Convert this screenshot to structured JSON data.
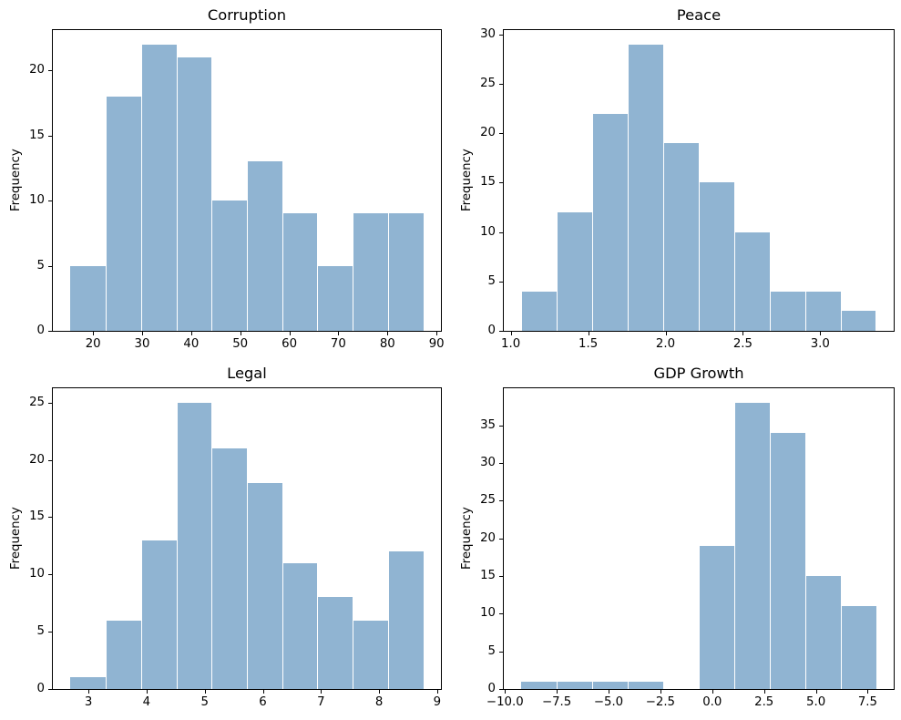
{
  "figure": {
    "background": "#ffffff",
    "bar_color": "#90b4d2",
    "bar_seam_color": "#ffffff",
    "spine_color": "#000000",
    "text_color": "#000000"
  },
  "chart_data": [
    {
      "type": "histogram",
      "title": "Corruption",
      "xlabel": "",
      "ylabel": "Frequency",
      "bin_edges": [
        15.4,
        22.59,
        29.78,
        36.97,
        44.16,
        51.35,
        58.54,
        65.73,
        72.92,
        80.11,
        87.3
      ],
      "counts": [
        5,
        18,
        22,
        21,
        10,
        13,
        9,
        5,
        9,
        9
      ],
      "xlim": [
        11.8,
        90.9
      ],
      "ylim": [
        0,
        23.1
      ],
      "grid": false,
      "xtick_values": [
        20,
        30,
        40,
        50,
        60,
        70,
        80,
        90
      ],
      "xtick_labels": [
        "20",
        "30",
        "40",
        "50",
        "60",
        "70",
        "80",
        "90"
      ],
      "ytick_values": [
        0,
        5,
        10,
        15,
        20
      ],
      "ytick_labels": [
        "0",
        "5",
        "10",
        "15",
        "20"
      ]
    },
    {
      "type": "histogram",
      "title": "Peace",
      "xlabel": "",
      "ylabel": "Frequency",
      "bin_edges": [
        1.07,
        1.299,
        1.528,
        1.757,
        1.986,
        2.215,
        2.444,
        2.673,
        2.902,
        3.131,
        3.36
      ],
      "counts": [
        4,
        12,
        22,
        29,
        19,
        15,
        10,
        4,
        4,
        2
      ],
      "xlim": [
        0.955,
        3.475
      ],
      "ylim": [
        0,
        30.45
      ],
      "grid": false,
      "xtick_values": [
        1.0,
        1.5,
        2.0,
        2.5,
        3.0
      ],
      "xtick_labels": [
        "1.0",
        "1.5",
        "2.0",
        "2.5",
        "3.0"
      ],
      "ytick_values": [
        0,
        5,
        10,
        15,
        20,
        25,
        30
      ],
      "ytick_labels": [
        "0",
        "5",
        "10",
        "15",
        "20",
        "25",
        "30"
      ]
    },
    {
      "type": "histogram",
      "title": "Legal",
      "xlabel": "",
      "ylabel": "Frequency",
      "bin_edges": [
        2.69,
        3.297,
        3.904,
        4.511,
        5.118,
        5.725,
        6.332,
        6.939,
        7.546,
        8.153,
        8.76
      ],
      "counts": [
        1,
        6,
        13,
        25,
        21,
        18,
        11,
        8,
        6,
        12
      ],
      "xlim": [
        2.387,
        9.064
      ],
      "ylim": [
        0,
        26.25
      ],
      "grid": false,
      "xtick_values": [
        3,
        4,
        5,
        6,
        7,
        8,
        9
      ],
      "xtick_labels": [
        "3",
        "4",
        "5",
        "6",
        "7",
        "8",
        "9"
      ],
      "ytick_values": [
        0,
        5,
        10,
        15,
        20,
        25
      ],
      "ytick_labels": [
        "0",
        "5",
        "10",
        "15",
        "20",
        "25"
      ]
    },
    {
      "type": "histogram",
      "title": "GDP Growth",
      "xlabel": "",
      "ylabel": "Frequency",
      "bin_edges": [
        -9.2,
        -7.49,
        -5.78,
        -4.07,
        -2.36,
        -0.65,
        1.06,
        2.77,
        4.48,
        6.19,
        7.9
      ],
      "counts": [
        1,
        1,
        1,
        1,
        0,
        19,
        38,
        34,
        15,
        11
      ],
      "xlim": [
        -10.055,
        8.755
      ],
      "ylim": [
        0,
        39.9
      ],
      "grid": false,
      "xtick_values": [
        -10.0,
        -7.5,
        -5.0,
        -2.5,
        0.0,
        2.5,
        5.0,
        7.5
      ],
      "xtick_labels": [
        "−10.0",
        "−7.5",
        "−5.0",
        "−2.5",
        "0.0",
        "2.5",
        "5.0",
        "7.5"
      ],
      "ytick_values": [
        0,
        5,
        10,
        15,
        20,
        25,
        30,
        35
      ],
      "ytick_labels": [
        "0",
        "5",
        "10",
        "15",
        "20",
        "25",
        "30",
        "35"
      ]
    }
  ]
}
